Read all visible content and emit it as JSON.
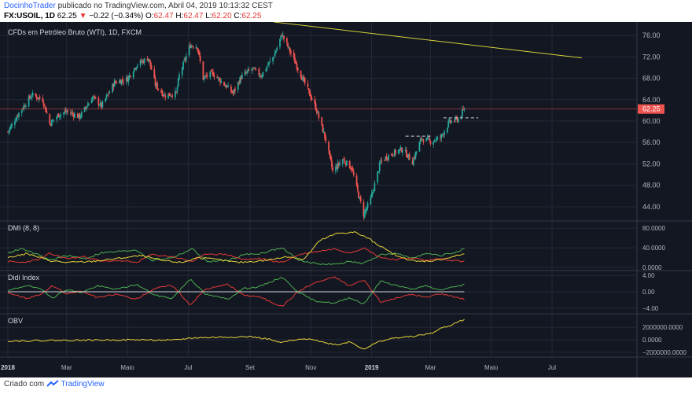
{
  "header": {
    "author": "DocinhoTrader",
    "published": "publicado no TradingView.com, Abril 04, 2019 10:13:32 CEST",
    "symbol": "FX:USOIL, 1D",
    "last": "62.25",
    "change": "−0.22 (−0.34%)",
    "ohlc": {
      "o_label": "O:",
      "o": "62.47",
      "h_label": "H:",
      "h": "62.47",
      "l_label": "L:",
      "l": "62.20",
      "c_label": "C:",
      "c": "62.25"
    }
  },
  "footer": {
    "created": "Criado com",
    "brand": "TradingView"
  },
  "colors": {
    "background": "#131722",
    "grid": "#252936",
    "up": "#26a69a",
    "down": "#ef5350",
    "trendline": "#d6d13b",
    "di_plus": "#4caf50",
    "di_minus": "#e53935",
    "adx": "#e6d43a",
    "obv": "#e6d43a",
    "price_label": "#ef5350"
  },
  "chart_data": [
    {
      "type": "candlestick",
      "title": "CFDs em Petróleo Bruto (WTI), 1D, FXCM",
      "x_ticks": [
        "2018",
        "Mar",
        "Maio",
        "Jul",
        "Set",
        "Nov",
        "2019",
        "Mar",
        "Maio",
        "Jul"
      ],
      "y_ticks": [
        "76.00",
        "72.00",
        "68.00",
        "64.00",
        "60.00",
        "56.00",
        "52.00",
        "48.00",
        "44.00"
      ],
      "ylim": [
        41.5,
        78.5
      ],
      "last_price": 62.25,
      "last_price_label": "62.25",
      "trendline": {
        "from": {
          "date": "2018-09-25",
          "value": 78.5
        },
        "to": {
          "date": "2019-07-31",
          "value": 71.8
        }
      },
      "dashed_levels": [
        {
          "value": 57.2,
          "from": "2019-02-04",
          "to": "2019-03-01"
        },
        {
          "value": 60.6,
          "from": "2019-03-14",
          "to": "2019-04-18"
        }
      ],
      "close_path": [
        [
          "2018-01-01",
          58.0
        ],
        [
          "2018-01-12",
          61.5
        ],
        [
          "2018-01-25",
          64.9
        ],
        [
          "2018-02-05",
          64.0
        ],
        [
          "2018-02-12",
          59.5
        ],
        [
          "2018-02-21",
          61.2
        ],
        [
          "2018-03-01",
          61.8
        ],
        [
          "2018-03-14",
          60.8
        ],
        [
          "2018-03-27",
          64.5
        ],
        [
          "2018-04-05",
          62.8
        ],
        [
          "2018-04-18",
          67.2
        ],
        [
          "2018-05-01",
          67.9
        ],
        [
          "2018-05-10",
          70.5
        ],
        [
          "2018-05-22",
          71.8
        ],
        [
          "2018-05-29",
          66.8
        ],
        [
          "2018-06-07",
          64.8
        ],
        [
          "2018-06-19",
          65.2
        ],
        [
          "2018-06-22",
          68.5
        ],
        [
          "2018-07-03",
          74.2
        ],
        [
          "2018-07-10",
          74.0
        ],
        [
          "2018-07-16",
          68.0
        ],
        [
          "2018-07-25",
          69.0
        ],
        [
          "2018-08-01",
          67.8
        ],
        [
          "2018-08-15",
          65.2
        ],
        [
          "2018-08-23",
          68.2
        ],
        [
          "2018-09-03",
          69.8
        ],
        [
          "2018-09-12",
          68.5
        ],
        [
          "2018-09-25",
          72.2
        ],
        [
          "2018-10-03",
          76.2
        ],
        [
          "2018-10-15",
          71.5
        ],
        [
          "2018-10-26",
          67.0
        ],
        [
          "2018-11-06",
          62.5
        ],
        [
          "2018-11-16",
          56.5
        ],
        [
          "2018-11-23",
          50.6
        ],
        [
          "2018-12-03",
          52.9
        ],
        [
          "2018-12-12",
          51.2
        ],
        [
          "2018-12-18",
          46.8
        ],
        [
          "2018-12-24",
          42.6
        ],
        [
          "2018-12-31",
          45.4
        ],
        [
          "2019-01-10",
          52.4
        ],
        [
          "2019-01-18",
          53.6
        ],
        [
          "2019-02-01",
          54.8
        ],
        [
          "2019-02-11",
          52.4
        ],
        [
          "2019-02-20",
          56.8
        ],
        [
          "2019-03-01",
          56.2
        ],
        [
          "2019-03-11",
          56.9
        ],
        [
          "2019-03-20",
          59.8
        ],
        [
          "2019-03-29",
          60.4
        ],
        [
          "2019-04-04",
          62.25
        ]
      ]
    },
    {
      "type": "line",
      "title": "DMI (8, 8)",
      "y_ticks": [
        "80.0000",
        "40.0000",
        "0.0000"
      ],
      "ylim": [
        0,
        90
      ],
      "series": [
        {
          "name": "",
          "color": "#4caf50",
          "values": [
            [
              "2018-01-01",
              30
            ],
            [
              "2018-01-15",
              38
            ],
            [
              "2018-02-01",
              25
            ],
            [
              "2018-02-12",
              15
            ],
            [
              "2018-03-01",
              24
            ],
            [
              "2018-03-20",
              18
            ],
            [
              "2018-04-05",
              30
            ],
            [
              "2018-04-20",
              32
            ],
            [
              "2018-05-10",
              36
            ],
            [
              "2018-05-25",
              14
            ],
            [
              "2018-06-15",
              20
            ],
            [
              "2018-07-05",
              38
            ],
            [
              "2018-07-20",
              12
            ],
            [
              "2018-08-10",
              14
            ],
            [
              "2018-08-25",
              26
            ],
            [
              "2018-09-10",
              28
            ],
            [
              "2018-10-03",
              40
            ],
            [
              "2018-10-20",
              15
            ],
            [
              "2018-11-05",
              8
            ],
            [
              "2018-11-25",
              6
            ],
            [
              "2018-12-10",
              12
            ],
            [
              "2018-12-24",
              8
            ],
            [
              "2019-01-10",
              26
            ],
            [
              "2019-01-25",
              28
            ],
            [
              "2019-02-10",
              20
            ],
            [
              "2019-02-25",
              28
            ],
            [
              "2019-03-10",
              24
            ],
            [
              "2019-03-25",
              30
            ],
            [
              "2019-04-04",
              38
            ]
          ]
        },
        {
          "name": "",
          "color": "#e53935",
          "values": [
            [
              "2018-01-01",
              12
            ],
            [
              "2018-01-15",
              10
            ],
            [
              "2018-02-01",
              16
            ],
            [
              "2018-02-12",
              28
            ],
            [
              "2018-03-01",
              18
            ],
            [
              "2018-03-20",
              22
            ],
            [
              "2018-04-05",
              12
            ],
            [
              "2018-04-20",
              14
            ],
            [
              "2018-05-10",
              10
            ],
            [
              "2018-05-25",
              26
            ],
            [
              "2018-06-15",
              22
            ],
            [
              "2018-07-05",
              12
            ],
            [
              "2018-07-20",
              28
            ],
            [
              "2018-08-10",
              26
            ],
            [
              "2018-08-25",
              16
            ],
            [
              "2018-09-10",
              18
            ],
            [
              "2018-10-03",
              10
            ],
            [
              "2018-10-20",
              26
            ],
            [
              "2018-11-05",
              32
            ],
            [
              "2018-11-25",
              38
            ],
            [
              "2018-12-10",
              30
            ],
            [
              "2018-12-24",
              40
            ],
            [
              "2019-01-10",
              20
            ],
            [
              "2019-01-25",
              16
            ],
            [
              "2019-02-10",
              20
            ],
            [
              "2019-02-25",
              14
            ],
            [
              "2019-03-10",
              18
            ],
            [
              "2019-03-25",
              14
            ],
            [
              "2019-04-04",
              12
            ]
          ]
        },
        {
          "name": "",
          "color": "#e6d43a",
          "values": [
            [
              "2018-01-01",
              20
            ],
            [
              "2018-01-20",
              28
            ],
            [
              "2018-02-12",
              14
            ],
            [
              "2018-03-01",
              10
            ],
            [
              "2018-03-25",
              12
            ],
            [
              "2018-04-20",
              18
            ],
            [
              "2018-05-15",
              24
            ],
            [
              "2018-06-05",
              14
            ],
            [
              "2018-06-25",
              10
            ],
            [
              "2018-07-10",
              20
            ],
            [
              "2018-07-30",
              16
            ],
            [
              "2018-08-20",
              10
            ],
            [
              "2018-09-15",
              14
            ],
            [
              "2018-10-10",
              22
            ],
            [
              "2018-10-25",
              16
            ],
            [
              "2018-11-10",
              55
            ],
            [
              "2018-11-28",
              70
            ],
            [
              "2018-12-15",
              72
            ],
            [
              "2018-12-30",
              58
            ],
            [
              "2019-01-15",
              36
            ],
            [
              "2019-01-30",
              20
            ],
            [
              "2019-02-15",
              12
            ],
            [
              "2019-03-05",
              14
            ],
            [
              "2019-03-20",
              20
            ],
            [
              "2019-04-04",
              28
            ]
          ]
        }
      ]
    },
    {
      "type": "line",
      "title": "Didi Index",
      "y_ticks": [
        "4.00",
        "0.00",
        "−4.00"
      ],
      "ylim": [
        -4.6,
        4.6
      ],
      "series": [
        {
          "name": "",
          "color": "#4caf50",
          "values": [
            [
              "2018-01-01",
              0.2
            ],
            [
              "2018-01-20",
              1.6
            ],
            [
              "2018-02-05",
              0.4
            ],
            [
              "2018-02-15",
              -1.5
            ],
            [
              "2018-03-01",
              0.6
            ],
            [
              "2018-03-15",
              -0.2
            ],
            [
              "2018-04-01",
              1.4
            ],
            [
              "2018-04-20",
              0.6
            ],
            [
              "2018-05-10",
              1.8
            ],
            [
              "2018-05-28",
              -0.8
            ],
            [
              "2018-06-15",
              -1.6
            ],
            [
              "2018-07-03",
              3.2
            ],
            [
              "2018-07-18",
              -0.6
            ],
            [
              "2018-08-10",
              -1.8
            ],
            [
              "2018-08-25",
              0.8
            ],
            [
              "2018-09-10",
              1.2
            ],
            [
              "2018-10-03",
              3.6
            ],
            [
              "2018-10-20",
              -0.2
            ],
            [
              "2018-11-05",
              -2.2
            ],
            [
              "2018-11-25",
              -2.8
            ],
            [
              "2018-12-10",
              -1.4
            ],
            [
              "2018-12-24",
              -3.0
            ],
            [
              "2019-01-10",
              2.6
            ],
            [
              "2019-01-25",
              1.6
            ],
            [
              "2019-02-10",
              0.6
            ],
            [
              "2019-02-25",
              1.4
            ],
            [
              "2019-03-10",
              0.4
            ],
            [
              "2019-03-25",
              1.2
            ],
            [
              "2019-04-04",
              1.8
            ]
          ]
        },
        {
          "name": "",
          "color": "#e53935",
          "values": [
            [
              "2018-01-01",
              -0.2
            ],
            [
              "2018-01-20",
              -1.6
            ],
            [
              "2018-02-05",
              -0.4
            ],
            [
              "2018-02-15",
              1.5
            ],
            [
              "2018-03-01",
              -0.6
            ],
            [
              "2018-03-15",
              0.2
            ],
            [
              "2018-04-01",
              -1.4
            ],
            [
              "2018-04-20",
              -0.6
            ],
            [
              "2018-05-10",
              -1.8
            ],
            [
              "2018-05-28",
              0.8
            ],
            [
              "2018-06-15",
              1.6
            ],
            [
              "2018-07-03",
              -3.2
            ],
            [
              "2018-07-18",
              0.6
            ],
            [
              "2018-08-10",
              1.8
            ],
            [
              "2018-08-25",
              -0.8
            ],
            [
              "2018-09-10",
              -1.2
            ],
            [
              "2018-10-03",
              -3.6
            ],
            [
              "2018-10-20",
              0.2
            ],
            [
              "2018-11-05",
              2.2
            ],
            [
              "2018-11-25",
              3.6
            ],
            [
              "2018-12-10",
              1.4
            ],
            [
              "2018-12-24",
              3.0
            ],
            [
              "2019-01-10",
              -2.6
            ],
            [
              "2019-01-25",
              -1.6
            ],
            [
              "2019-02-10",
              -0.6
            ],
            [
              "2019-02-25",
              -1.4
            ],
            [
              "2019-03-10",
              -0.4
            ],
            [
              "2019-03-25",
              -1.2
            ],
            [
              "2019-04-04",
              -1.8
            ]
          ]
        }
      ]
    },
    {
      "type": "line",
      "title": "OBV",
      "y_ticks": [
        "2000000.0000",
        "0.0000",
        "−2000000.0000"
      ],
      "ylim": [
        -2400000,
        3800000
      ],
      "series": [
        {
          "name": "",
          "color": "#e6d43a",
          "values": [
            [
              "2018-01-01",
              -200000
            ],
            [
              "2018-02-15",
              -100000
            ],
            [
              "2018-04-01",
              -50000
            ],
            [
              "2018-05-15",
              0
            ],
            [
              "2018-06-15",
              -100000
            ],
            [
              "2018-07-05",
              300000
            ],
            [
              "2018-08-01",
              400000
            ],
            [
              "2018-09-01",
              500000
            ],
            [
              "2018-09-20",
              100000
            ],
            [
              "2018-10-01",
              -500000
            ],
            [
              "2018-10-10",
              -200000
            ],
            [
              "2018-10-20",
              0
            ],
            [
              "2018-11-01",
              200000
            ],
            [
              "2018-11-15",
              -500000
            ],
            [
              "2018-11-28",
              -800000
            ],
            [
              "2018-12-10",
              -300000
            ],
            [
              "2018-12-24",
              -1500000
            ],
            [
              "2019-01-10",
              -200000
            ],
            [
              "2019-01-25",
              300000
            ],
            [
              "2019-02-10",
              500000
            ],
            [
              "2019-02-25",
              900000
            ],
            [
              "2019-03-05",
              1200000
            ],
            [
              "2019-03-12",
              1900000
            ],
            [
              "2019-03-20",
              2200000
            ],
            [
              "2019-03-28",
              2900000
            ],
            [
              "2019-04-04",
              3200000
            ]
          ]
        }
      ]
    }
  ]
}
